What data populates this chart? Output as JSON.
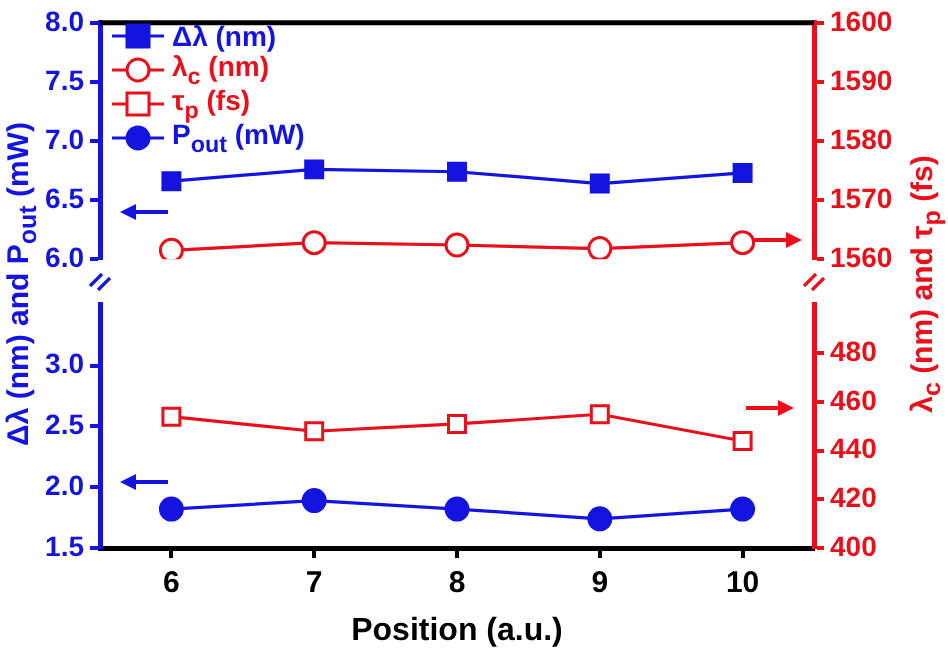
{
  "chart_data": [
    {
      "type": "line",
      "ylabel": "Δλ (nm) and P$_{out}$ (mW)",
      "y2label": "λ$_{c}$ (nm) and τ$_{p}$ (fs)",
      "legend": "top left",
      "tick_labels": "y",
      "x": [
        6,
        7,
        8,
        9,
        10
      ],
      "xlim": [
        5.5,
        10.5
      ],
      "ylim": [
        6,
        8
      ],
      "yticks": [
        {
          "value": 6,
          "label": "6.0"
        },
        6.5,
        {
          "value": 7,
          "label": "7.0"
        },
        7.5,
        {
          "value": 8,
          "label": "8.0"
        }
      ],
      "y2lim": [
        1560,
        1600
      ],
      "y2ticks": [
        1560,
        1570,
        1580,
        1590,
        1600
      ],
      "line_style": "solid",
      "series": [
        {
          "name": "Δλ (nm)",
          "color": "#1414e0",
          "marker": "square",
          "values": [
            6.66,
            6.76,
            6.74,
            6.64,
            6.73
          ]
        },
        {
          "name": "λ$_{c}$ (nm)",
          "color": "#e8101a",
          "marker": "circle",
          "axis": "y2",
          "values": [
            1561.5,
            1562.8,
            1562.4,
            1561.8,
            1562.8
          ]
        }
      ]
    },
    {
      "type": "line",
      "xlabel": "Position (a.u.)",
      "legend": "top left",
      "x": [
        6,
        7,
        8,
        9,
        10
      ],
      "xlim": [
        5.5,
        10.5
      ],
      "xticks": [
        6,
        7,
        8,
        9,
        10
      ],
      "ylim": [
        1.5,
        3.5
      ],
      "yticks": [
        1.5,
        {
          "value": 2,
          "label": "2.0"
        },
        2.5,
        {
          "value": 3,
          "label": "3.0"
        }
      ],
      "y2lim": [
        400,
        500
      ],
      "y2ticks": [
        400,
        420,
        440,
        460,
        480
      ],
      "line_style": "solid",
      "series": [
        {
          "name": "τ$_{p}$ (fs)",
          "color": "#e8101a",
          "marker": "square",
          "axis": "y2",
          "values": [
            454,
            448,
            451,
            455,
            444
          ]
        },
        {
          "name": "P$_{out}$ (mW)",
          "color": "#1414e0",
          "marker": "circle",
          "values": [
            1.82,
            1.89,
            1.82,
            1.74,
            1.82
          ]
        }
      ]
    }
  ]
}
